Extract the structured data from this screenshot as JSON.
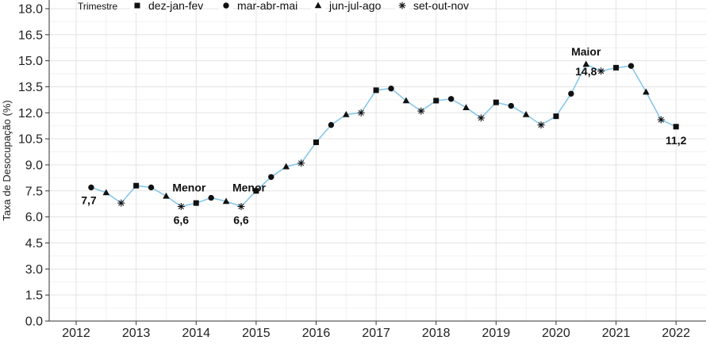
{
  "chart_data": {
    "type": "line",
    "ylabel": "Taxa de Desocupação (%)",
    "xlabel": "",
    "ylim": [
      0,
      18.5
    ],
    "xlim": [
      2011.55,
      2022.5
    ],
    "y_ticks": [
      "0.0",
      "1.5",
      "3.0",
      "4.5",
      "6.0",
      "7.5",
      "9.0",
      "10.5",
      "12.0",
      "13.5",
      "15.0",
      "16.5",
      "18.0"
    ],
    "x_ticks": [
      "2012",
      "2013",
      "2014",
      "2015",
      "2016",
      "2017",
      "2018",
      "2019",
      "2020",
      "2021",
      "2022"
    ],
    "grid": true,
    "line_color": "#87c7ea",
    "legend": {
      "title": "Trimestre",
      "position": "top",
      "entries": [
        {
          "label": "dez-jan-fev",
          "marker": "square"
        },
        {
          "label": "mar-abr-mai",
          "marker": "circle"
        },
        {
          "label": "jun-jul-ago",
          "marker": "triangle"
        },
        {
          "label": "set-out-nov",
          "marker": "asterisk"
        }
      ]
    },
    "series": [
      {
        "points": [
          {
            "x": 2012.25,
            "y": 7.7,
            "marker": "circle"
          },
          {
            "x": 2012.5,
            "y": 7.4,
            "marker": "triangle"
          },
          {
            "x": 2012.75,
            "y": 6.8,
            "marker": "asterisk"
          },
          {
            "x": 2013.0,
            "y": 7.8,
            "marker": "square"
          },
          {
            "x": 2013.25,
            "y": 7.7,
            "marker": "circle"
          },
          {
            "x": 2013.5,
            "y": 7.2,
            "marker": "triangle"
          },
          {
            "x": 2013.75,
            "y": 6.6,
            "marker": "asterisk"
          },
          {
            "x": 2014.0,
            "y": 6.8,
            "marker": "square"
          },
          {
            "x": 2014.25,
            "y": 7.1,
            "marker": "circle"
          },
          {
            "x": 2014.5,
            "y": 6.9,
            "marker": "triangle"
          },
          {
            "x": 2014.75,
            "y": 6.6,
            "marker": "asterisk"
          },
          {
            "x": 2015.0,
            "y": 7.5,
            "marker": "square"
          },
          {
            "x": 2015.25,
            "y": 8.3,
            "marker": "circle"
          },
          {
            "x": 2015.5,
            "y": 8.9,
            "marker": "triangle"
          },
          {
            "x": 2015.75,
            "y": 9.1,
            "marker": "asterisk"
          },
          {
            "x": 2016.0,
            "y": 10.3,
            "marker": "square"
          },
          {
            "x": 2016.25,
            "y": 11.3,
            "marker": "circle"
          },
          {
            "x": 2016.5,
            "y": 11.9,
            "marker": "triangle"
          },
          {
            "x": 2016.75,
            "y": 12.0,
            "marker": "asterisk"
          },
          {
            "x": 2017.0,
            "y": 13.3,
            "marker": "square"
          },
          {
            "x": 2017.25,
            "y": 13.4,
            "marker": "circle"
          },
          {
            "x": 2017.5,
            "y": 12.7,
            "marker": "triangle"
          },
          {
            "x": 2017.75,
            "y": 12.1,
            "marker": "asterisk"
          },
          {
            "x": 2018.0,
            "y": 12.7,
            "marker": "square"
          },
          {
            "x": 2018.25,
            "y": 12.8,
            "marker": "circle"
          },
          {
            "x": 2018.5,
            "y": 12.3,
            "marker": "triangle"
          },
          {
            "x": 2018.75,
            "y": 11.7,
            "marker": "asterisk"
          },
          {
            "x": 2019.0,
            "y": 12.6,
            "marker": "square"
          },
          {
            "x": 2019.25,
            "y": 12.4,
            "marker": "circle"
          },
          {
            "x": 2019.5,
            "y": 11.9,
            "marker": "triangle"
          },
          {
            "x": 2019.75,
            "y": 11.3,
            "marker": "asterisk"
          },
          {
            "x": 2020.0,
            "y": 11.8,
            "marker": "square"
          },
          {
            "x": 2020.25,
            "y": 13.1,
            "marker": "circle"
          },
          {
            "x": 2020.5,
            "y": 14.8,
            "marker": "triangle"
          },
          {
            "x": 2020.75,
            "y": 14.4,
            "marker": "asterisk"
          },
          {
            "x": 2021.0,
            "y": 14.6,
            "marker": "square"
          },
          {
            "x": 2021.25,
            "y": 14.7,
            "marker": "circle"
          },
          {
            "x": 2021.5,
            "y": 13.2,
            "marker": "triangle"
          },
          {
            "x": 2021.75,
            "y": 11.6,
            "marker": "asterisk"
          },
          {
            "x": 2022.0,
            "y": 11.2,
            "marker": "square"
          }
        ]
      }
    ],
    "annotations": [
      {
        "x": 2012.25,
        "y": 7.7,
        "value": "7,7",
        "label": "",
        "placement": "below-left"
      },
      {
        "x": 2013.75,
        "y": 6.6,
        "value": "6,6",
        "label": "Menor",
        "placement": "value-below-label-above"
      },
      {
        "x": 2014.75,
        "y": 6.6,
        "value": "6,6",
        "label": "Menor",
        "placement": "value-below-label-above"
      },
      {
        "x": 2020.5,
        "y": 14.8,
        "value": "14,8",
        "label": "Maior",
        "placement": "label-above-value-below"
      },
      {
        "x": 2022.0,
        "y": 11.2,
        "value": "11,2",
        "label": "",
        "placement": "below"
      }
    ]
  }
}
